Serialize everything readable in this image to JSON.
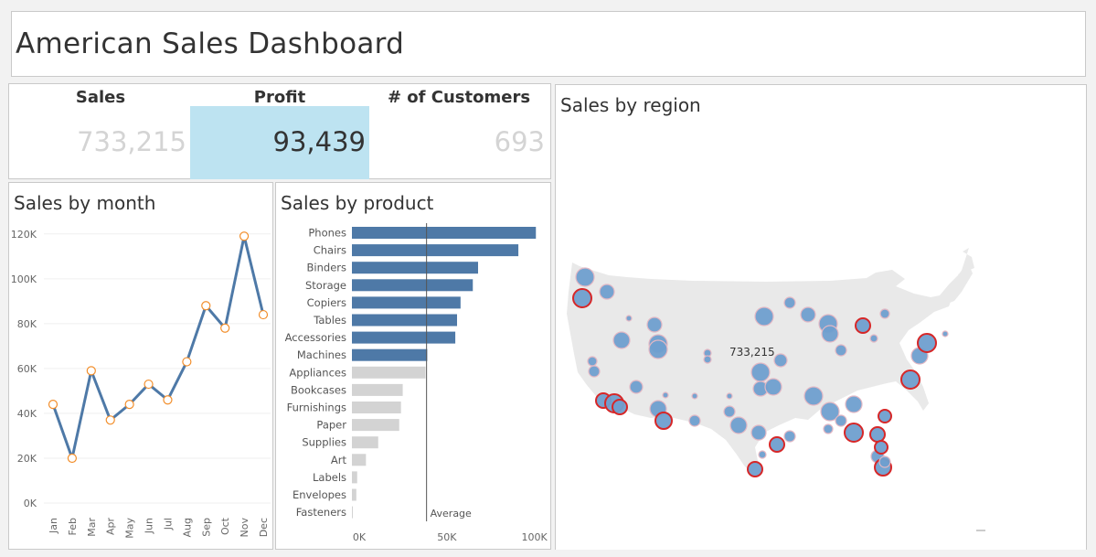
{
  "title": "American Sales Dashboard",
  "kpis": {
    "sales": {
      "label": "Sales",
      "value": "733,215"
    },
    "profit": {
      "label": "Profit",
      "value": "93,439"
    },
    "customers": {
      "label": "# of Customers",
      "value": "693"
    }
  },
  "colors": {
    "bar": "#4e79a7",
    "bar_muted": "#d3d3d3",
    "line": "#4e79a7",
    "marker": "#f28e2b",
    "kpi_highlight": "#bde3f1",
    "map_land": "#e9e9e9",
    "bubble": "#6f9fcf",
    "bubble_outline": "#d62728"
  },
  "map": {
    "title": "Sales by region",
    "annotation": "733,215"
  },
  "chart_data": [
    {
      "type": "line",
      "title": "Sales by month",
      "categories": [
        "Jan",
        "Feb",
        "Mar",
        "Apr",
        "May",
        "Jun",
        "Jul",
        "Aug",
        "Sep",
        "Oct",
        "Nov",
        "Dec"
      ],
      "values": [
        44000,
        20000,
        59000,
        37000,
        44000,
        53000,
        46000,
        63000,
        88000,
        78000,
        119000,
        84000
      ],
      "yticks": [
        0,
        20000,
        40000,
        60000,
        80000,
        100000,
        120000
      ],
      "yticklabels": [
        "0K",
        "20K",
        "40K",
        "60K",
        "80K",
        "100K",
        "120K"
      ],
      "ylim": [
        0,
        124000
      ],
      "grid": true
    },
    {
      "type": "bar",
      "title": "Sales by product",
      "orientation": "horizontal",
      "categories": [
        "Phones",
        "Chairs",
        "Binders",
        "Storage",
        "Copiers",
        "Tables",
        "Accessories",
        "Machines",
        "Appliances",
        "Bookcases",
        "Furnishings",
        "Paper",
        "Supplies",
        "Art",
        "Labels",
        "Envelopes",
        "Fasteners"
      ],
      "values": [
        105000,
        95000,
        72000,
        69000,
        62000,
        60000,
        59000,
        43000,
        42000,
        29000,
        28000,
        27000,
        15000,
        8000,
        3000,
        2500,
        500
      ],
      "xticks": [
        0,
        50000,
        100000
      ],
      "xticklabels": [
        "0K",
        "50K",
        "100K"
      ],
      "xlim": [
        0,
        108000
      ],
      "reference_line": {
        "label": "Average",
        "value": 42600
      }
    }
  ]
}
